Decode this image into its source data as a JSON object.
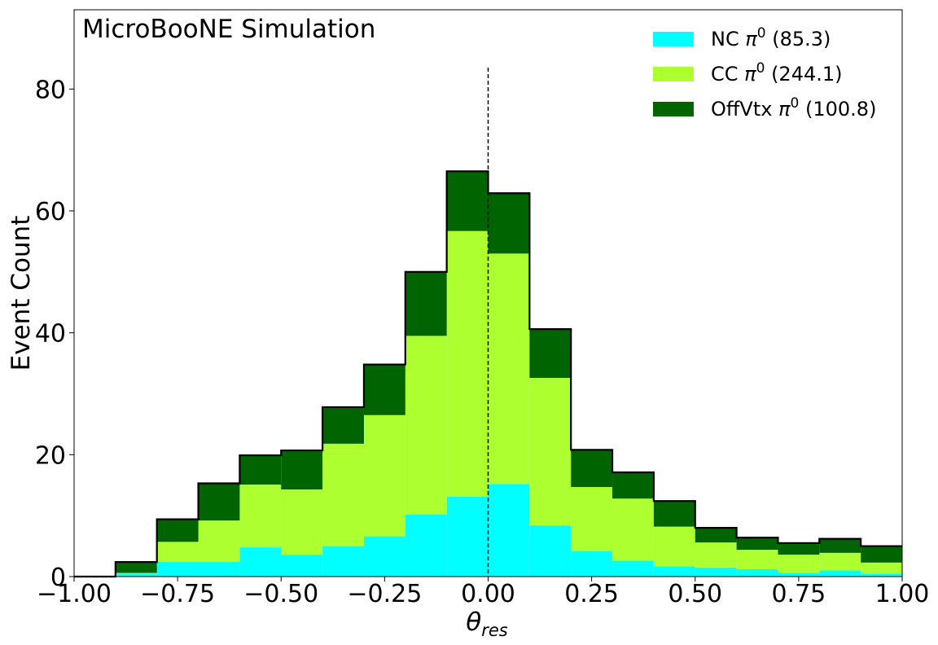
{
  "chart_data": {
    "type": "bar",
    "stacked": true,
    "histogram": true,
    "annotation": "MicroBooNE Simulation",
    "xlabel": "θ",
    "xlabel_sub": "res",
    "ylabel": "Event Count",
    "xlim": [
      -1.0,
      1.0
    ],
    "ylim": [
      0,
      93
    ],
    "xticks": [
      "−1.00",
      "−0.75",
      "−0.50",
      "−0.25",
      "0.00",
      "0.25",
      "0.50",
      "0.75",
      "1.00"
    ],
    "xtick_values": [
      -1.0,
      -0.75,
      -0.5,
      -0.25,
      0.0,
      0.25,
      0.5,
      0.75,
      1.0
    ],
    "yticks": [
      "0",
      "20",
      "40",
      "60",
      "80"
    ],
    "ytick_values": [
      0,
      20,
      40,
      60,
      80
    ],
    "bin_edges": [
      -1.0,
      -0.9,
      -0.8,
      -0.7,
      -0.6,
      -0.5,
      -0.4,
      -0.3,
      -0.2,
      -0.1,
      0.0,
      0.1,
      0.2,
      0.3,
      0.4,
      0.5,
      0.6,
      0.7,
      0.8,
      0.9,
      1.0
    ],
    "series": [
      {
        "name": "NC",
        "name_suffix": "(85.3)",
        "color": "#00ffff",
        "values": [
          0,
          0.5,
          2.4,
          2.4,
          4.8,
          3.6,
          5.0,
          6.6,
          10.2,
          13.1,
          15.2,
          8.4,
          4.2,
          2.6,
          1.7,
          1.5,
          1.2,
          0.6,
          1.0,
          0.5
        ]
      },
      {
        "name": "CC",
        "name_suffix": "(244.1)",
        "color": "#adff2f",
        "values": [
          0,
          0.1,
          3.3,
          6.8,
          10.3,
          10.7,
          16.8,
          19.9,
          29.3,
          43.6,
          37.8,
          24.2,
          10.5,
          10.2,
          6.5,
          4.1,
          3.2,
          3.0,
          2.9,
          1.8
        ]
      },
      {
        "name": "OffVtx",
        "name_suffix": "(100.8)",
        "color": "#006400",
        "values": [
          0,
          1.8,
          3.7,
          6.1,
          4.8,
          6.4,
          6.0,
          8.3,
          10.5,
          9.8,
          9.9,
          8.0,
          6.1,
          4.3,
          4.2,
          2.4,
          2.0,
          1.9,
          2.3,
          2.7
        ]
      }
    ],
    "legend_symbol": "π",
    "legend_sup": "0",
    "legend_position": "top-right",
    "reference_line": {
      "x": 0.0,
      "style": "dashed"
    },
    "grid": false
  }
}
